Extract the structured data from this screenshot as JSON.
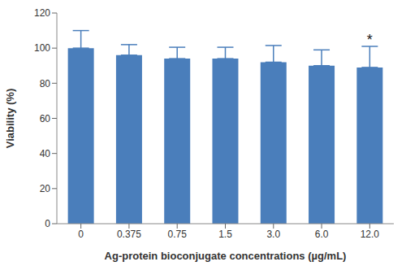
{
  "chart_data": {
    "type": "bar",
    "categories": [
      "0",
      "0.375",
      "0.75",
      "1.5",
      "3.0",
      "6.0",
      "12.0"
    ],
    "values": [
      100,
      96,
      94,
      94,
      92,
      90,
      89
    ],
    "errors": [
      10,
      6,
      6.5,
      6.5,
      9.5,
      9,
      12
    ],
    "color": "#4a7ebb",
    "x_label": "Ag-protein bioconjugate concentrations (µg/mL)",
    "y_label": "Viability (%)",
    "ylim": [
      0,
      120
    ],
    "yticks": [
      0,
      20,
      40,
      60,
      80,
      100,
      120
    ],
    "grid": false,
    "annotations": [
      {
        "text": "*",
        "category": "12.0"
      }
    ]
  }
}
